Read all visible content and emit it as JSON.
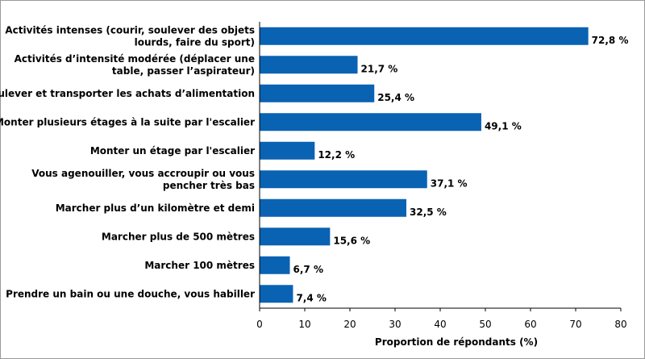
{
  "chart_data": {
    "type": "bar",
    "orientation": "horizontal",
    "categories": [
      [
        "Activités intenses (courir, soulever des objets",
        "lourds, faire du sport)"
      ],
      [
        "Activités d’intensité modérée (déplacer une",
        "table, passer l’aspirateur)"
      ],
      [
        "Soulever et transporter les achats d’alimentation"
      ],
      [
        "Monter plusieurs étages à la suite par l'escalier"
      ],
      [
        "Monter un étage par l'escalier"
      ],
      [
        "Vous agenouiller, vous accroupir ou vous",
        "pencher très bas"
      ],
      [
        "Marcher plus d’un kilomètre et demi"
      ],
      [
        "Marcher plus de 500 mètres"
      ],
      [
        "Marcher 100 mètres"
      ],
      [
        "Prendre un bain ou une douche, vous habiller"
      ]
    ],
    "values": [
      72.8,
      21.7,
      25.4,
      49.1,
      12.2,
      37.1,
      32.5,
      15.6,
      6.7,
      7.4
    ],
    "value_labels": [
      "72,8 %",
      "21,7 %",
      "25,4 %",
      "49,1 %",
      "12,2 %",
      "37,1 %",
      "32,5 %",
      "15,6 %",
      "6,7 %",
      "7,4 %"
    ],
    "xlabel": "Proportion de répondants (%)",
    "xlim": [
      0,
      80
    ],
    "xticks": [
      0,
      10,
      20,
      30,
      40,
      50,
      60,
      70,
      80
    ],
    "grid": false,
    "bar_color": "#0a62b3"
  }
}
